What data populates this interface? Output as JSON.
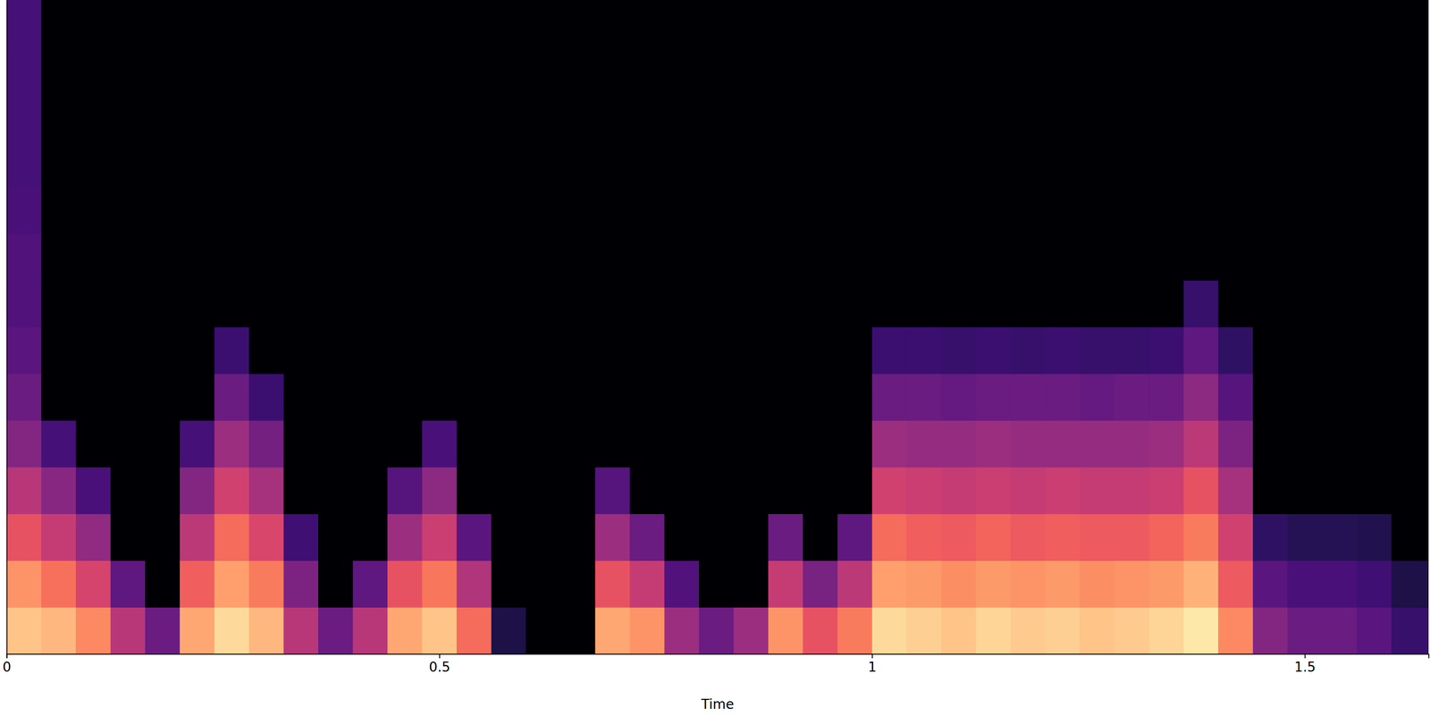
{
  "chart_data": {
    "type": "heatmap",
    "x_label": "Time",
    "xlim": [
      0,
      1.643
    ],
    "xticks": [
      0,
      0.5,
      1,
      1.5
    ],
    "ylim": [
      0,
      11025
    ],
    "tick_labels": "x",
    "zlim": [
      -80,
      0
    ],
    "x_bins": [
      0,
      0.04,
      0.08,
      0.12,
      0.16,
      0.2,
      0.24,
      0.28,
      0.32,
      0.36,
      0.4,
      0.44,
      0.48,
      0.52,
      0.56,
      0.6,
      0.64,
      0.68,
      0.72,
      0.76,
      0.8,
      0.84,
      0.88,
      0.92,
      0.96,
      1.0,
      1.04,
      1.08,
      1.12,
      1.16,
      1.2,
      1.24,
      1.28,
      1.32,
      1.36,
      1.4,
      1.44,
      1.48,
      1.52,
      1.56,
      1.6,
      1.643
    ],
    "y_bins": [
      0,
      787.5,
      1575,
      2362.5,
      3150,
      3937.5,
      4725,
      5512.5,
      6300,
      7087.5,
      7875,
      8662.5,
      9450,
      10237.5,
      11025
    ],
    "z": [
      [
        -10,
        -12,
        -20,
        -40,
        -55,
        -15,
        -6,
        -12,
        -40,
        -55,
        -40,
        -15,
        -10,
        -25,
        -70,
        -80,
        -80,
        -15,
        -18,
        -45,
        -55,
        -45,
        -18,
        -30,
        -22,
        -6,
        -8,
        -10,
        -7,
        -9,
        -8,
        -10,
        -9,
        -7,
        -4,
        -20,
        -50,
        -55,
        -55,
        -58,
        -65
      ],
      [
        -18,
        -24,
        -34,
        -57,
        -80,
        -27,
        -16,
        -22,
        -51,
        -80,
        -57,
        -30,
        -23,
        -41,
        -80,
        -80,
        -80,
        -30,
        -37,
        -60,
        -80,
        -80,
        -37,
        -52,
        -39,
        -16,
        -17,
        -19,
        -17,
        -18,
        -17,
        -19,
        -18,
        -17,
        -13,
        -28,
        -58,
        -61,
        -61,
        -63,
        -70
      ],
      [
        -30,
        -37,
        -47,
        -80,
        -80,
        -39,
        -25,
        -33,
        -63,
        -80,
        -80,
        -45,
        -36,
        -58,
        -80,
        -80,
        -80,
        -45,
        -55,
        -80,
        -80,
        -80,
        -55,
        -80,
        -57,
        -25,
        -27,
        -28,
        -26,
        -28,
        -27,
        -28,
        -28,
        -26,
        -22,
        -35,
        -66,
        -68,
        -68,
        -69,
        -80
      ],
      [
        -40,
        -49,
        -61,
        -80,
        -80,
        -50,
        -35,
        -43,
        -80,
        -80,
        -80,
        -59,
        -48,
        -80,
        -80,
        -80,
        -80,
        -59,
        -80,
        -80,
        -80,
        -80,
        -80,
        -80,
        -80,
        -35,
        -36,
        -37,
        -36,
        -37,
        -36,
        -37,
        -37,
        -36,
        -30,
        -43,
        -80,
        -80,
        -80,
        -80,
        -80
      ],
      [
        -50,
        -62,
        -80,
        -80,
        -80,
        -62,
        -45,
        -53,
        -80,
        -80,
        -80,
        -80,
        -61,
        -80,
        -80,
        -80,
        -80,
        -80,
        -80,
        -80,
        -80,
        -80,
        -80,
        -80,
        -80,
        -45,
        -46,
        -46,
        -45,
        -46,
        -46,
        -46,
        -46,
        -45,
        -39,
        -51,
        -80,
        -80,
        -80,
        -80,
        -80
      ],
      [
        -55,
        -80,
        -80,
        -80,
        -80,
        -80,
        -55,
        -64,
        -80,
        -80,
        -80,
        -80,
        -80,
        -80,
        -80,
        -80,
        -80,
        -80,
        -80,
        -80,
        -80,
        -80,
        -80,
        -80,
        -80,
        -55,
        -55,
        -56,
        -55,
        -55,
        -55,
        -56,
        -55,
        -55,
        -48,
        -59,
        -80,
        -80,
        -80,
        -80,
        -80
      ],
      [
        -58,
        -80,
        -80,
        -80,
        -80,
        -80,
        -64,
        -80,
        -80,
        -80,
        -80,
        -80,
        -80,
        -80,
        -80,
        -80,
        -80,
        -80,
        -80,
        -80,
        -80,
        -80,
        -80,
        -80,
        -80,
        -64,
        -64,
        -65,
        -64,
        -65,
        -64,
        -65,
        -65,
        -64,
        -57,
        -66,
        -80,
        -80,
        -80,
        -80,
        -80
      ],
      [
        -60,
        -80,
        -80,
        -80,
        -80,
        -80,
        -80,
        -80,
        -80,
        -80,
        -80,
        -80,
        -80,
        -80,
        -80,
        -80,
        -80,
        -80,
        -80,
        -80,
        -80,
        -80,
        -80,
        -80,
        -80,
        -80,
        -80,
        -80,
        -80,
        -80,
        -80,
        -80,
        -80,
        -80,
        -65,
        -80,
        -80,
        -80,
        -80,
        -80,
        -80
      ],
      [
        -60,
        -80,
        -80,
        -80,
        -80,
        -80,
        -80,
        -80,
        -80,
        -80,
        -80,
        -80,
        -80,
        -80,
        -80,
        -80,
        -80,
        -80,
        -80,
        -80,
        -80,
        -80,
        -80,
        -80,
        -80,
        -80,
        -80,
        -80,
        -80,
        -80,
        -80,
        -80,
        -80,
        -80,
        -80,
        -80,
        -80,
        -80,
        -80,
        -80,
        -80
      ],
      [
        -61,
        -80,
        -80,
        -80,
        -80,
        -80,
        -80,
        -80,
        -80,
        -80,
        -80,
        -80,
        -80,
        -80,
        -80,
        -80,
        -80,
        -80,
        -80,
        -80,
        -80,
        -80,
        -80,
        -80,
        -80,
        -80,
        -80,
        -80,
        -80,
        -80,
        -80,
        -80,
        -80,
        -80,
        -80,
        -80,
        -80,
        -80,
        -80,
        -80,
        -80
      ],
      [
        -62,
        -80,
        -80,
        -80,
        -80,
        -80,
        -80,
        -80,
        -80,
        -80,
        -80,
        -80,
        -80,
        -80,
        -80,
        -80,
        -80,
        -80,
        -80,
        -80,
        -80,
        -80,
        -80,
        -80,
        -80,
        -80,
        -80,
        -80,
        -80,
        -80,
        -80,
        -80,
        -80,
        -80,
        -80,
        -80,
        -80,
        -80,
        -80,
        -80,
        -80
      ],
      [
        -62,
        -80,
        -80,
        -80,
        -80,
        -80,
        -80,
        -80,
        -80,
        -80,
        -80,
        -80,
        -80,
        -80,
        -80,
        -80,
        -80,
        -80,
        -80,
        -80,
        -80,
        -80,
        -80,
        -80,
        -80,
        -80,
        -80,
        -80,
        -80,
        -80,
        -80,
        -80,
        -80,
        -80,
        -80,
        -80,
        -80,
        -80,
        -80,
        -80,
        -80
      ],
      [
        -62,
        -80,
        -80,
        -80,
        -80,
        -80,
        -80,
        -80,
        -80,
        -80,
        -80,
        -80,
        -80,
        -80,
        -80,
        -80,
        -80,
        -80,
        -80,
        -80,
        -80,
        -80,
        -80,
        -80,
        -80,
        -80,
        -80,
        -80,
        -80,
        -80,
        -80,
        -80,
        -80,
        -80,
        -80,
        -80,
        -80,
        -80,
        -80,
        -80,
        -80
      ],
      [
        -62,
        -80,
        -80,
        -80,
        -80,
        -80,
        -80,
        -80,
        -80,
        -80,
        -80,
        -80,
        -80,
        -80,
        -80,
        -80,
        -80,
        -80,
        -80,
        -80,
        -80,
        -80,
        -80,
        -80,
        -80,
        -80,
        -80,
        -80,
        -80,
        -80,
        -80,
        -80,
        -80,
        -80,
        -80,
        -80,
        -80,
        -80,
        -80,
        -80,
        -80
      ]
    ]
  }
}
